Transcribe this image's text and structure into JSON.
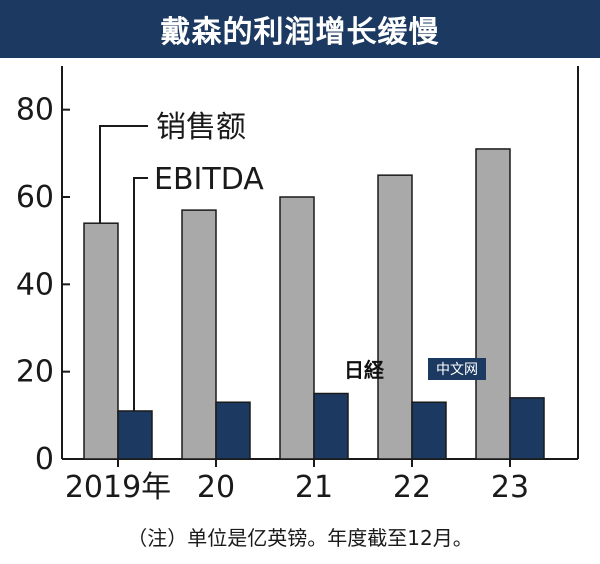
{
  "title": "戴森的利润增长缓慢",
  "note": "（注）单位是亿英镑。年度截至12月。",
  "watermark": {
    "logo": "日経",
    "label": "中文网"
  },
  "colors": {
    "sales": "#a9a9a9",
    "ebitda": "#1c3a61",
    "title_bg": "#1c3a61"
  },
  "chart_data": {
    "type": "bar",
    "categories": [
      "2019年",
      "20",
      "21",
      "22",
      "23"
    ],
    "series": [
      {
        "name": "销售额",
        "values": [
          54,
          57,
          60,
          65,
          71
        ]
      },
      {
        "name": "EBITDA",
        "values": [
          11,
          13,
          15,
          13,
          14
        ]
      }
    ],
    "ylim": [
      0,
      90
    ],
    "yticks": [
      0,
      20,
      40,
      60,
      80
    ],
    "legend_placement": "callout-left",
    "grid": false
  }
}
